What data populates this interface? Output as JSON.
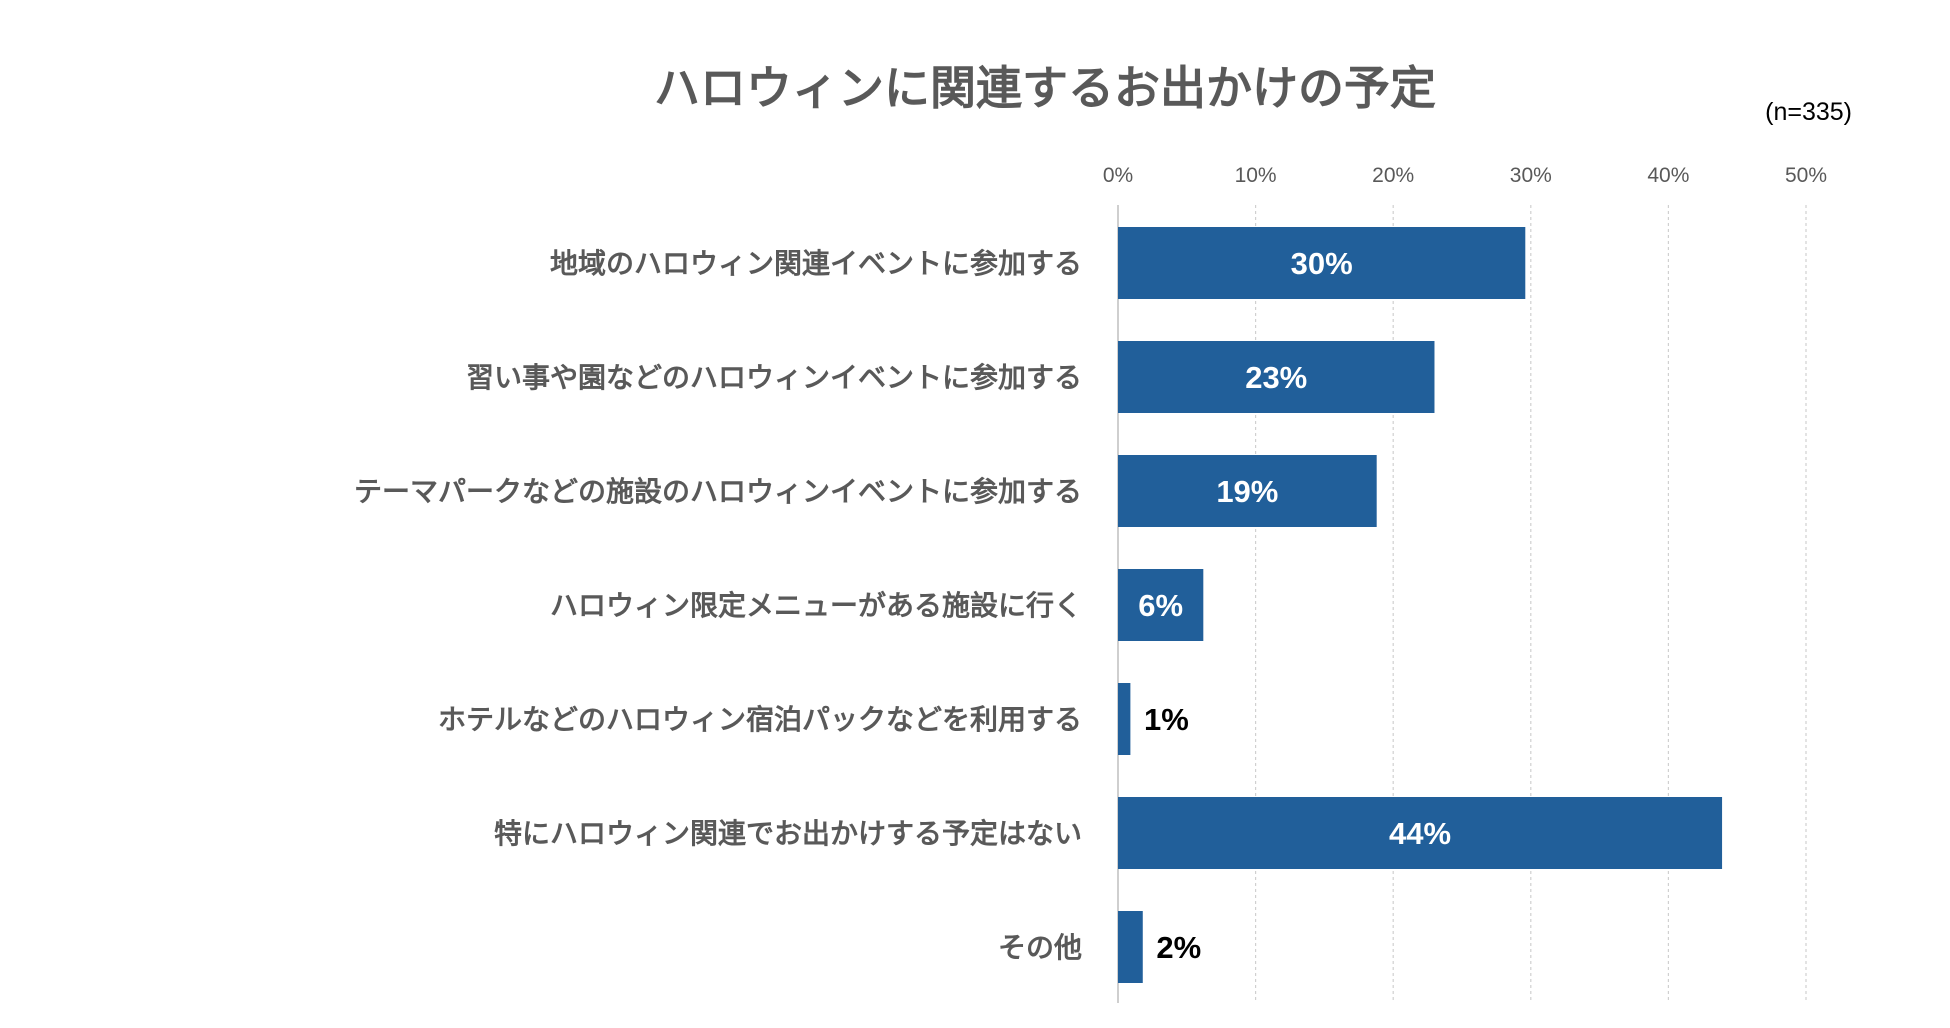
{
  "chart_data": {
    "type": "bar",
    "orientation": "horizontal",
    "title": "ハロウィンに関連するお出かけの予定",
    "note": "(n=335)",
    "categories": [
      "地域のハロウィン関連イベントに参加する",
      "習い事や園などのハロウィンイベントに参加する",
      "テーマパークなどの施設のハロウィンイベントに参加する",
      "ハロウィン限定メニューがある施設に行く",
      "ホテルなどのハロウィン宿泊パックなどを利用する",
      "特にハロウィン関連でお出かけする予定はない",
      "その他"
    ],
    "values": [
      29.6,
      23.0,
      18.8,
      6.2,
      0.9,
      43.9,
      1.8
    ],
    "data_labels": [
      "30%",
      "23%",
      "19%",
      "6%",
      "1%",
      "44%",
      "2%"
    ],
    "xlim": [
      0,
      50
    ],
    "xticks": [
      0,
      10,
      20,
      30,
      40,
      50
    ],
    "xtick_labels": [
      "0%",
      "10%",
      "20%",
      "30%",
      "40%",
      "50%"
    ],
    "x_axis_position": "top",
    "grid": true,
    "grid_style": "dotted",
    "legend": false,
    "colors": {
      "bar": "#215f9a",
      "label_inside": "#ffffff",
      "label_outside": "#000000",
      "title": "#595959",
      "category_text": "#595959",
      "tick_text": "#595959",
      "grid": "#d0d0d0"
    }
  }
}
